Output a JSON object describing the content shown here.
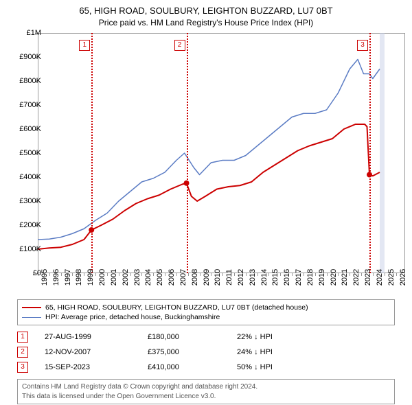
{
  "title_line1": "65, HIGH ROAD, SOULBURY, LEIGHTON BUZZARD, LU7 0BT",
  "title_line2": "Price paid vs. HM Land Registry's House Price Index (HPI)",
  "chart": {
    "type": "line",
    "background_color": "#ffffff",
    "border_color": "#999999",
    "grid_color": "#e0e0e0",
    "xlim": [
      1995,
      2026.8
    ],
    "ylim": [
      0,
      1000000
    ],
    "yticks": [
      0,
      100000,
      200000,
      300000,
      400000,
      500000,
      600000,
      700000,
      800000,
      900000,
      1000000
    ],
    "ytick_labels": [
      "£0",
      "£100K",
      "£200K",
      "£300K",
      "£400K",
      "£500K",
      "£600K",
      "£700K",
      "£800K",
      "£900K",
      "£1M"
    ],
    "xticks": [
      1995,
      1996,
      1997,
      1998,
      1999,
      2000,
      2001,
      2002,
      2003,
      2004,
      2005,
      2006,
      2007,
      2008,
      2009,
      2010,
      2011,
      2012,
      2013,
      2014,
      2015,
      2016,
      2017,
      2018,
      2019,
      2020,
      2021,
      2022,
      2023,
      2024,
      2025,
      2026
    ],
    "tick_fontsize": 11,
    "title_fontsize": 13,
    "now_band": {
      "start": 2024.6,
      "end": 2025.0,
      "color": "#c8d0e8",
      "opacity": 0.5
    },
    "series": [
      {
        "name": "property",
        "color": "#cc0000",
        "line_width": 2,
        "data": [
          [
            1995.0,
            100000
          ],
          [
            1996.0,
            105000
          ],
          [
            1997.0,
            108000
          ],
          [
            1998.0,
            120000
          ],
          [
            1999.0,
            140000
          ],
          [
            1999.65,
            180000
          ],
          [
            2000.5,
            200000
          ],
          [
            2001.5,
            225000
          ],
          [
            2002.5,
            260000
          ],
          [
            2003.5,
            290000
          ],
          [
            2004.5,
            310000
          ],
          [
            2005.5,
            325000
          ],
          [
            2006.5,
            350000
          ],
          [
            2007.5,
            370000
          ],
          [
            2007.87,
            375000
          ],
          [
            2008.3,
            320000
          ],
          [
            2008.8,
            300000
          ],
          [
            2009.5,
            320000
          ],
          [
            2010.5,
            350000
          ],
          [
            2011.5,
            360000
          ],
          [
            2012.5,
            365000
          ],
          [
            2013.5,
            380000
          ],
          [
            2014.5,
            420000
          ],
          [
            2015.5,
            450000
          ],
          [
            2016.5,
            480000
          ],
          [
            2017.5,
            510000
          ],
          [
            2018.5,
            530000
          ],
          [
            2019.5,
            545000
          ],
          [
            2020.5,
            560000
          ],
          [
            2021.5,
            600000
          ],
          [
            2022.5,
            620000
          ],
          [
            2023.3,
            620000
          ],
          [
            2023.5,
            610000
          ],
          [
            2023.71,
            410000
          ],
          [
            2024.0,
            405000
          ],
          [
            2024.6,
            420000
          ]
        ]
      },
      {
        "name": "hpi",
        "color": "#5b7cc4",
        "line_width": 1.5,
        "data": [
          [
            1995.0,
            140000
          ],
          [
            1996.0,
            142000
          ],
          [
            1997.0,
            150000
          ],
          [
            1998.0,
            165000
          ],
          [
            1999.0,
            185000
          ],
          [
            2000.0,
            220000
          ],
          [
            2001.0,
            250000
          ],
          [
            2002.0,
            300000
          ],
          [
            2003.0,
            340000
          ],
          [
            2004.0,
            380000
          ],
          [
            2005.0,
            395000
          ],
          [
            2006.0,
            420000
          ],
          [
            2007.0,
            470000
          ],
          [
            2007.7,
            500000
          ],
          [
            2008.5,
            440000
          ],
          [
            2009.0,
            410000
          ],
          [
            2010.0,
            460000
          ],
          [
            2011.0,
            470000
          ],
          [
            2012.0,
            470000
          ],
          [
            2013.0,
            490000
          ],
          [
            2014.0,
            530000
          ],
          [
            2015.0,
            570000
          ],
          [
            2016.0,
            610000
          ],
          [
            2017.0,
            650000
          ],
          [
            2018.0,
            665000
          ],
          [
            2019.0,
            665000
          ],
          [
            2020.0,
            680000
          ],
          [
            2021.0,
            750000
          ],
          [
            2022.0,
            850000
          ],
          [
            2022.7,
            890000
          ],
          [
            2023.2,
            830000
          ],
          [
            2023.7,
            830000
          ],
          [
            2024.0,
            810000
          ],
          [
            2024.6,
            850000
          ]
        ]
      }
    ],
    "points": [
      {
        "x": 1999.65,
        "y": 180000,
        "color": "#cc0000",
        "radius": 4
      },
      {
        "x": 2007.87,
        "y": 375000,
        "color": "#cc0000",
        "radius": 4
      },
      {
        "x": 2023.71,
        "y": 410000,
        "color": "#cc0000",
        "radius": 4
      }
    ],
    "event_lines": [
      {
        "num": "1",
        "x": 1999.65,
        "box_top": 10
      },
      {
        "num": "2",
        "x": 2007.87,
        "box_top": 10
      },
      {
        "num": "3",
        "x": 2023.71,
        "box_top": 10
      }
    ],
    "event_line_color": "#cc0000"
  },
  "legend": {
    "items": [
      {
        "color": "#cc0000",
        "width": 2,
        "label": "65, HIGH ROAD, SOULBURY, LEIGHTON BUZZARD, LU7 0BT (detached house)"
      },
      {
        "color": "#5b7cc4",
        "width": 1.5,
        "label": "HPI: Average price, detached house, Buckinghamshire"
      }
    ]
  },
  "events_table": [
    {
      "num": "1",
      "date": "27-AUG-1999",
      "price": "£180,000",
      "diff": "22% ↓ HPI"
    },
    {
      "num": "2",
      "date": "12-NOV-2007",
      "price": "£375,000",
      "diff": "24% ↓ HPI"
    },
    {
      "num": "3",
      "date": "15-SEP-2023",
      "price": "£410,000",
      "diff": "50% ↓ HPI"
    }
  ],
  "footer": {
    "line1": "Contains HM Land Registry data © Crown copyright and database right 2024.",
    "line2": "This data is licensed under the Open Government Licence v3.0."
  }
}
